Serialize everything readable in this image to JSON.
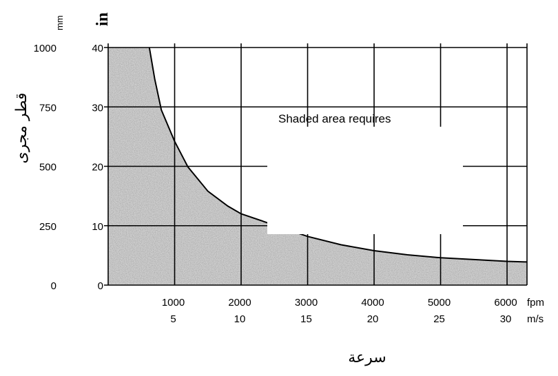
{
  "chart_data": {
    "type": "area",
    "title": "",
    "xlabel": "سرعة",
    "ylabel": "قطر مجرى",
    "x_units": [
      "fpm",
      "m/s"
    ],
    "y_units": [
      "mm",
      "in"
    ],
    "x_ticks_fpm": [
      "1000",
      "2000",
      "3000",
      "4000",
      "5000",
      "6000"
    ],
    "x_ticks_ms": [
      "5",
      "10",
      "15",
      "20",
      "25",
      "30"
    ],
    "y_ticks_mm": [
      "1000",
      "750",
      "500",
      "250",
      "0"
    ],
    "y_ticks_in": [
      "40",
      "30",
      "20",
      "10",
      "0"
    ],
    "xlim": [
      0,
      6300
    ],
    "ylim": [
      0,
      40
    ],
    "grid": true,
    "annotation": "Shaded area requires",
    "series": [
      {
        "x": [
          620,
          700,
          800,
          1000,
          1200,
          1500,
          1800,
          2000,
          2500,
          3000,
          3500,
          4000,
          4500,
          5000,
          5500,
          6000,
          6300
        ],
        "values": [
          40,
          34.7,
          29.5,
          24.2,
          19.9,
          15.8,
          13.3,
          12.0,
          10.1,
          8.2,
          6.8,
          5.8,
          5.1,
          4.6,
          4.3,
          4.0,
          3.9
        ]
      }
    ]
  }
}
